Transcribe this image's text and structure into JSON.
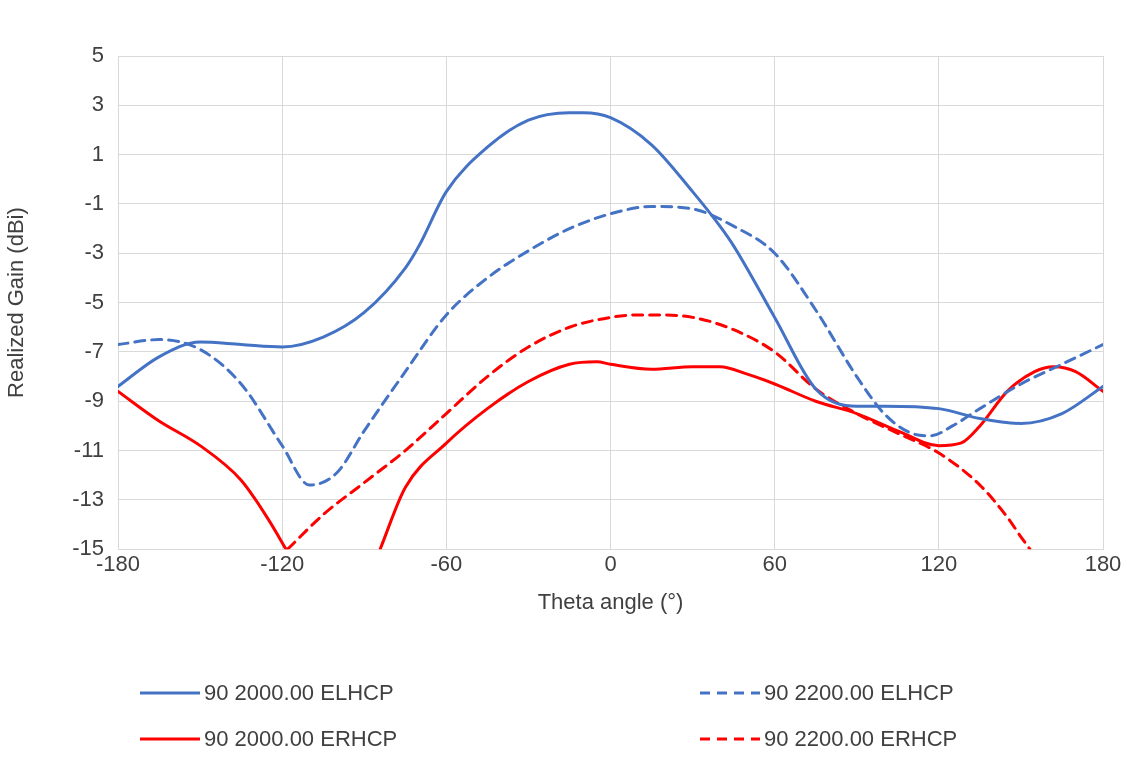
{
  "chart_data": {
    "type": "line",
    "xlabel": "Theta angle (°)",
    "ylabel": "Realized Gain (dBi)",
    "xlim": [
      -180,
      180
    ],
    "xticks": [
      -180,
      -120,
      -60,
      0,
      60,
      120,
      180
    ],
    "ylim": [
      -15,
      5
    ],
    "yticks": [
      -15,
      -13,
      -11,
      -9,
      -7,
      -5,
      -3,
      -1,
      1,
      3,
      5
    ],
    "grid": true,
    "legend": "bottom",
    "marker": "none",
    "series": [
      {
        "name": "90 2000.00 ELHCP",
        "color": "#4472c4",
        "line_style": "solid",
        "x": [
          -180,
          -165,
          -150,
          -135,
          -120,
          -105,
          -90,
          -75,
          -70,
          -60,
          -45,
          -30,
          -15,
          -10,
          0,
          15,
          30,
          40,
          45,
          60,
          75,
          90,
          100,
          120,
          135,
          150,
          165,
          180
        ],
        "values": [
          -8.4,
          -7.2,
          -6.6,
          -6.7,
          -6.8,
          -6.4,
          -5.4,
          -3.6,
          -2.7,
          -0.5,
          1.3,
          2.4,
          2.7,
          2.7,
          2.5,
          1.4,
          -0.5,
          -1.9,
          -2.7,
          -5.6,
          -8.5,
          -9.2,
          -9.2,
          -9.3,
          -9.7,
          -9.9,
          -9.5,
          -8.4
        ]
      },
      {
        "name": "90 2200.00 ELHCP",
        "color": "#4472c4",
        "line_style": "dashed",
        "x": [
          -180,
          -165,
          -150,
          -135,
          -120,
          -110,
          -100,
          -90,
          -75,
          -60,
          -45,
          -30,
          -15,
          0,
          15,
          30,
          45,
          60,
          75,
          90,
          100,
          110,
          117,
          125,
          135,
          150,
          165,
          180
        ],
        "values": [
          -6.7,
          -6.5,
          -6.9,
          -8.3,
          -10.8,
          -12.4,
          -11.9,
          -10.2,
          -7.8,
          -5.5,
          -4.0,
          -2.9,
          -2.0,
          -1.4,
          -1.1,
          -1.2,
          -1.9,
          -3.0,
          -5.3,
          -8.0,
          -9.5,
          -10.3,
          -10.4,
          -10.0,
          -9.3,
          -8.3,
          -7.5,
          -6.7
        ]
      },
      {
        "name": "90 2000.00 ERHCP",
        "color": "#ff0000",
        "line_style": "solid",
        "x": [
          -180,
          -165,
          -150,
          -135,
          -125,
          -118.6,
          -100,
          -84.2,
          -75,
          -60,
          -45,
          -30,
          -15,
          -5,
          0,
          15,
          30,
          40,
          50,
          60,
          75,
          90,
          105,
          120,
          128,
          135,
          145,
          155,
          162,
          170,
          180
        ],
        "values": [
          -8.6,
          -9.8,
          -10.8,
          -12.2,
          -13.8,
          -15,
          null,
          -15,
          -12.5,
          -10.7,
          -9.3,
          -8.2,
          -7.5,
          -7.4,
          -7.5,
          -7.7,
          -7.6,
          -7.6,
          -7.9,
          -8.3,
          -9.0,
          -9.5,
          -10.2,
          -10.8,
          -10.7,
          -10.0,
          -8.6,
          -7.8,
          -7.6,
          -7.8,
          -8.6
        ]
      },
      {
        "name": "90 2200.00 ERHCP",
        "color": "#ff0000",
        "line_style": "dashed",
        "x": [
          -118,
          -105,
          -90,
          -75,
          -60,
          -45,
          -30,
          -15,
          0,
          10,
          15,
          30,
          45,
          60,
          75,
          90,
          105,
          120,
          135,
          145,
          150,
          153.3
        ],
        "values": [
          -15,
          -13.6,
          -12.3,
          -11.0,
          -9.5,
          -8.0,
          -6.8,
          -6.0,
          -5.6,
          -5.5,
          -5.5,
          -5.6,
          -6.1,
          -7.0,
          -8.5,
          -9.5,
          -10.3,
          -11.1,
          -12.4,
          -13.7,
          -14.5,
          -15
        ]
      }
    ]
  }
}
